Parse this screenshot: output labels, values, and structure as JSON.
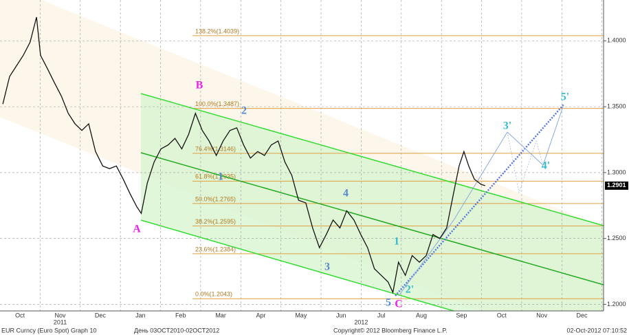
{
  "chart_data": {
    "type": "line",
    "title": "EUR Curncy (Euro Spot) Graph 10",
    "subtitle": "День 03OCT2010-02OCT2012",
    "source": "Copyright© 2012 Bloomberg Finance L.P.",
    "timestamp": "02-Oct-2012 07:10:52",
    "x": [
      0.07,
      0.24,
      0.41,
      0.58,
      0.75,
      0.91,
      1.01,
      1.18,
      1.36,
      1.53,
      1.7,
      1.87,
      2.04,
      2.21,
      2.38,
      2.56,
      2.73,
      2.9,
      3.07,
      3.24,
      3.41,
      3.52,
      3.67,
      3.84,
      4.01,
      4.19,
      4.36,
      4.53,
      4.7,
      4.87,
      5.04,
      5.21,
      5.39,
      5.56,
      5.73,
      5.9,
      6.07,
      6.24,
      6.42,
      6.59,
      6.76,
      6.93,
      7.1,
      7.27,
      7.44,
      7.62,
      7.79,
      7.96,
      8.13,
      8.3,
      8.47,
      8.64,
      8.82,
      8.99,
      9.16,
      9.33,
      9.5,
      9.67,
      9.79,
      9.93,
      10.1,
      10.27,
      10.45,
      10.62,
      10.79,
      10.96,
      11.13,
      11.3,
      11.44,
      11.56,
      11.68,
      11.82,
      11.99,
      12.09
    ],
    "series": [
      {
        "name": "EUR Curncy",
        "color": "#111111",
        "values": [
          1.352,
          1.373,
          1.381,
          1.389,
          1.399,
          1.418,
          1.389,
          1.379,
          1.368,
          1.358,
          1.345,
          1.337,
          1.332,
          1.337,
          1.316,
          1.305,
          1.303,
          1.305,
          1.295,
          1.284,
          1.274,
          1.269,
          1.292,
          1.308,
          1.318,
          1.321,
          1.326,
          1.318,
          1.329,
          1.345,
          1.332,
          1.324,
          1.313,
          1.324,
          1.332,
          1.334,
          1.321,
          1.311,
          1.316,
          1.313,
          1.321,
          1.324,
          1.308,
          1.298,
          1.279,
          1.277,
          1.258,
          1.243,
          1.253,
          1.264,
          1.258,
          1.271,
          1.264,
          1.253,
          1.243,
          1.227,
          1.222,
          1.217,
          1.209,
          1.232,
          1.222,
          1.237,
          1.232,
          1.237,
          1.253,
          1.25,
          1.258,
          1.284,
          1.305,
          1.316,
          1.305,
          1.295,
          1.291,
          1.2901
        ]
      }
    ],
    "last_price": {
      "value": 1.2901,
      "label": "1.2901"
    },
    "xlim": [
      0,
      15.04
    ],
    "xticks": [
      {
        "value": 0.5,
        "label": "Oct"
      },
      {
        "value": 1.5,
        "label": "Nov"
      },
      {
        "value": 2.5,
        "label": "Dec"
      },
      {
        "value": 3.5,
        "label": "Jan"
      },
      {
        "value": 4.5,
        "label": "Feb"
      },
      {
        "value": 5.5,
        "label": "Mar"
      },
      {
        "value": 6.5,
        "label": "Apr"
      },
      {
        "value": 7.5,
        "label": "May"
      },
      {
        "value": 8.5,
        "label": "Jun"
      },
      {
        "value": 9.5,
        "label": "Jul"
      },
      {
        "value": 10.5,
        "label": "Aug"
      },
      {
        "value": 11.5,
        "label": "Sep"
      },
      {
        "value": 12.5,
        "label": "Oct"
      },
      {
        "value": 13.5,
        "label": "Nov"
      },
      {
        "value": 14.5,
        "label": "Dec"
      }
    ],
    "year_labels": [
      {
        "value": 1.5,
        "label": "2011"
      },
      {
        "value": 9.0,
        "label": "2012"
      }
    ],
    "ylim": [
      1.195,
      1.431
    ],
    "yticks": [
      {
        "value": 1.2,
        "label": "1.2000"
      },
      {
        "value": 1.25,
        "label": "1.2500"
      },
      {
        "value": 1.3,
        "label": "1.3000"
      },
      {
        "value": 1.35,
        "label": "1.3500"
      },
      {
        "value": 1.4,
        "label": "1.4000"
      }
    ],
    "grid": true,
    "fib_levels": [
      {
        "value": 1.4039,
        "label": "138.2%(1.4039)"
      },
      {
        "value": 1.3487,
        "label": "100.0%(1.3487)"
      },
      {
        "value": 1.3146,
        "label": "76.4%(1.3146)"
      },
      {
        "value": 1.2935,
        "label": "61.8%(1.2935)"
      },
      {
        "value": 1.2765,
        "label": "50.0%(1.2765)"
      },
      {
        "value": 1.2595,
        "label": "38.2%(1.2595)"
      },
      {
        "value": 1.2384,
        "label": "23.6%(1.2384)"
      },
      {
        "value": 1.2043,
        "label": "0.0%(1.2043)"
      }
    ],
    "fib_color": "#e0a040",
    "waves": [
      "A",
      "B",
      "C",
      "1",
      "2",
      "3",
      "4",
      "5",
      "1",
      "2'",
      "3'",
      "4'",
      "5'"
    ]
  }
}
